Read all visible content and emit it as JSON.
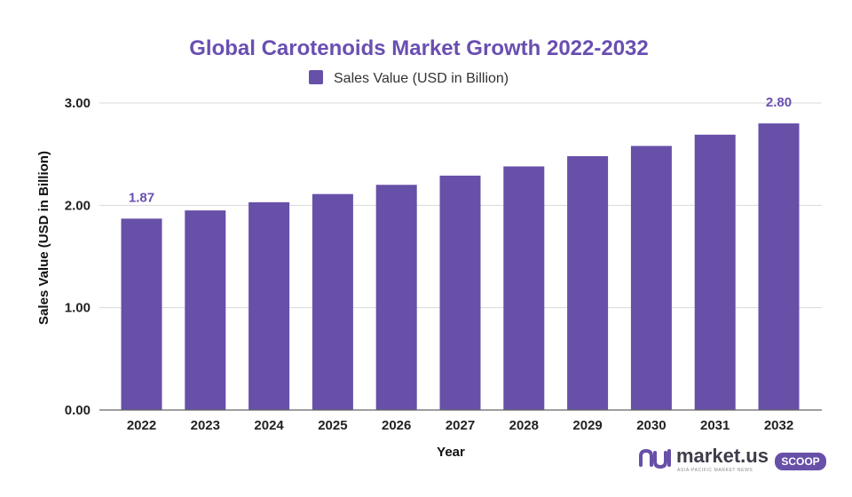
{
  "colors": {
    "bar": "#6750a8",
    "title": "#6a4fb1",
    "grid": "#d9d9d9",
    "axis": "#666666",
    "label": "#6a4fb1"
  },
  "legend": {
    "label": "Sales Value (USD in Billion)"
  },
  "logo": {
    "brand": "market.us",
    "tagline": "ASIA-PACIFIC MARKET NEWS",
    "badge": "SCOOP"
  },
  "chart_data": {
    "type": "bar",
    "title": "Global Carotenoids Market Growth 2022-2032",
    "xlabel": "Year",
    "ylabel": "Sales Value (USD in Billion)",
    "categories": [
      "2022",
      "2023",
      "2024",
      "2025",
      "2026",
      "2027",
      "2028",
      "2029",
      "2030",
      "2031",
      "2032"
    ],
    "series": [
      {
        "name": "Sales Value (USD in Billion)",
        "values": [
          1.87,
          1.95,
          2.03,
          2.11,
          2.2,
          2.29,
          2.38,
          2.48,
          2.58,
          2.69,
          2.8
        ]
      }
    ],
    "ylim": [
      0,
      3
    ],
    "yticks": [
      "0.00",
      "1.00",
      "2.00",
      "3.00"
    ],
    "data_labels": [
      {
        "index": 0,
        "text": "1.87"
      },
      {
        "index": 10,
        "text": "2.80"
      }
    ],
    "grid": true,
    "legend_position": "top"
  }
}
